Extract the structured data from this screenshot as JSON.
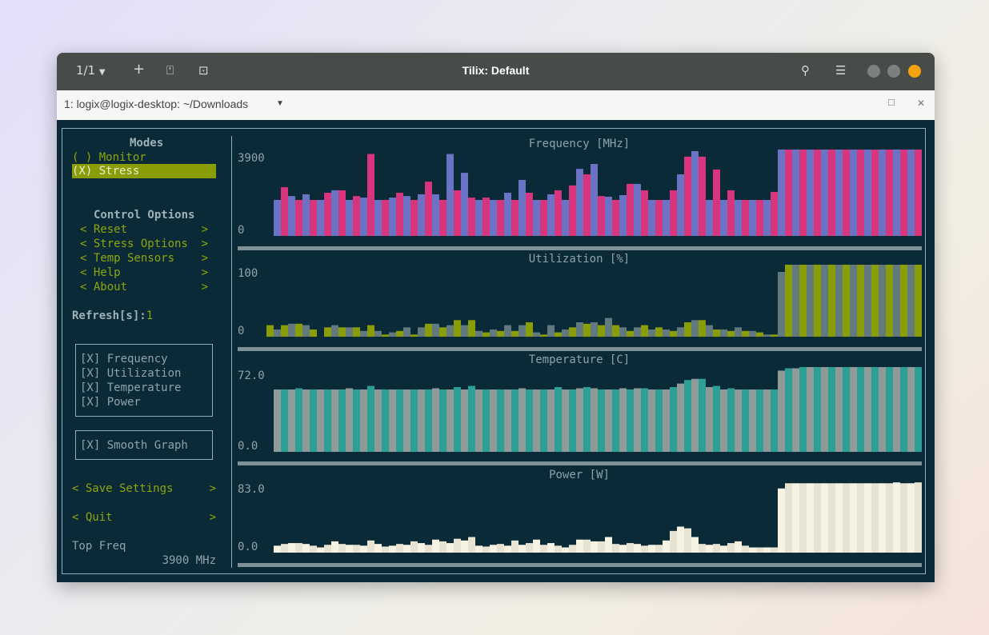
{
  "window": {
    "title": "Tilix: Default",
    "session_counter": "1/1",
    "tab_title": "1: logix@logix-desktop: ~/Downloads",
    "icons": [
      "chevron-down-icon",
      "plus-icon",
      "add-terminal-icon",
      "new-session-icon",
      "search-icon",
      "hamburger-menu-icon",
      "minimize-icon",
      "maximize-icon",
      "close-icon"
    ],
    "close_color": "#f5a30d"
  },
  "sidebar": {
    "modes_title": "Modes",
    "modes": [
      {
        "label": "( ) Monitor",
        "selected": false
      },
      {
        "label": "(X) Stress",
        "selected": true
      }
    ],
    "control_title": "Control Options",
    "controls": [
      {
        "label": "< Reset",
        "arrow": ">"
      },
      {
        "label": "< Stress Options",
        "arrow": ">"
      },
      {
        "label": "< Temp Sensors",
        "arrow": ">"
      },
      {
        "label": "< Help",
        "arrow": ">"
      },
      {
        "label": "< About",
        "arrow": ">"
      }
    ],
    "refresh_label": "Refresh[s]:",
    "refresh_value": "1",
    "graph_toggles": [
      "[X] Frequency",
      "[X] Utilization",
      "[X] Temperature",
      "[X] Power"
    ],
    "smooth_graph": "[X] Smooth Graph",
    "save": {
      "label": "< Save Settings",
      "arrow": ">"
    },
    "quit": {
      "label": "< Quit",
      "arrow": ">"
    },
    "top_freq_label": "Top Freq",
    "top_freq_value": "3900 MHz"
  },
  "chart_data": [
    {
      "type": "bar",
      "title": "Frequency [MHz]",
      "ylim": [
        0,
        3900
      ],
      "ytick_labels": [
        "3900",
        "0"
      ],
      "colors": [
        "#6b74c4",
        "#d8357f"
      ],
      "values": [
        1625,
        2200,
        1800,
        1625,
        1880,
        1625,
        1625,
        1950,
        2060,
        2060,
        1625,
        1800,
        1730,
        3700,
        1625,
        1625,
        1730,
        1950,
        1800,
        1625,
        1880,
        2450,
        1880,
        1625,
        3700,
        2060,
        2850,
        1730,
        1625,
        1730,
        1625,
        1625,
        1950,
        1625,
        2530,
        1950,
        1625,
        1625,
        1880,
        2060,
        1625,
        2280,
        3030,
        2780,
        3250,
        1800,
        1770,
        1625,
        1840,
        2350,
        2350,
        2060,
        1625,
        1625,
        1625,
        2060,
        2780,
        3580,
        3830,
        3580,
        1625,
        3000,
        1625,
        2060,
        1625,
        1625,
        1625,
        1625,
        1625,
        1990,
        3900,
        3900,
        3900,
        3900,
        3900,
        3900,
        3900,
        3900,
        3900,
        3900,
        3900,
        3900,
        3900,
        3900,
        3900,
        3900,
        3900,
        3900,
        3900,
        3900
      ]
    },
    {
      "type": "bar",
      "title": "Utilization [%]",
      "ylim": [
        0,
        100
      ],
      "ytick_labels": [
        "100",
        "0"
      ],
      "colors": [
        "#8a9c06",
        "#637980"
      ],
      "values": [
        16,
        10,
        16,
        18,
        18,
        16,
        10,
        0,
        13,
        16,
        13,
        13,
        13,
        8,
        16,
        8,
        3,
        6,
        8,
        13,
        3,
        13,
        18,
        18,
        13,
        16,
        23,
        16,
        23,
        8,
        6,
        10,
        8,
        16,
        8,
        16,
        20,
        6,
        3,
        16,
        6,
        10,
        13,
        20,
        18,
        20,
        16,
        26,
        16,
        13,
        8,
        13,
        16,
        10,
        13,
        10,
        8,
        13,
        20,
        23,
        23,
        16,
        10,
        10,
        8,
        13,
        8,
        8,
        6,
        3,
        3,
        90,
        100,
        100,
        100,
        100,
        100,
        100,
        100,
        100,
        100,
        100,
        100,
        100,
        100,
        100,
        100,
        100,
        100,
        100,
        100
      ]
    },
    {
      "type": "bar",
      "title": "Temperature [C]",
      "ylim": [
        0,
        72
      ],
      "ytick_labels": [
        "72.0",
        "0.0"
      ],
      "colors": [
        "#8f9a99",
        "#2c9f97"
      ],
      "values": [
        53,
        53,
        53,
        54,
        53,
        53,
        53,
        53,
        53,
        53,
        54,
        53,
        53,
        56,
        53,
        53,
        53,
        53,
        53,
        53,
        53,
        53,
        54,
        53,
        53,
        55,
        53,
        56,
        53,
        53,
        53,
        53,
        53,
        53,
        54,
        53,
        53,
        53,
        53,
        55,
        53,
        53,
        54,
        55,
        54,
        53,
        53,
        53,
        54,
        53,
        54,
        54,
        53,
        53,
        53,
        55,
        58,
        61,
        62,
        62,
        55,
        56,
        53,
        54,
        53,
        53,
        53,
        53,
        53,
        53,
        69,
        71,
        71,
        72,
        72,
        72,
        72,
        72,
        72,
        72,
        72,
        72,
        72,
        72,
        72,
        72,
        72,
        72,
        72,
        72
      ]
    },
    {
      "type": "bar",
      "title": "Power [W]",
      "ylim": [
        0,
        83
      ],
      "ytick_labels": [
        "83.0",
        "0.0"
      ],
      "colors": [
        "#f7f3e3",
        "#e8e4d3"
      ],
      "values": [
        8,
        10,
        11,
        11,
        10,
        8,
        6,
        9,
        13,
        10,
        9,
        9,
        8,
        14,
        10,
        7,
        8,
        10,
        9,
        13,
        11,
        9,
        15,
        13,
        11,
        16,
        14,
        18,
        8,
        7,
        9,
        10,
        8,
        14,
        9,
        11,
        15,
        9,
        11,
        8,
        6,
        9,
        15,
        15,
        13,
        13,
        18,
        10,
        9,
        11,
        10,
        8,
        9,
        9,
        14,
        25,
        30,
        28,
        18,
        10,
        9,
        10,
        8,
        11,
        13,
        8,
        6,
        6,
        6,
        6,
        74,
        80,
        80,
        80,
        80,
        80,
        80,
        80,
        80,
        80,
        80,
        80,
        80,
        80,
        80,
        80,
        81,
        80,
        80,
        81
      ]
    }
  ]
}
